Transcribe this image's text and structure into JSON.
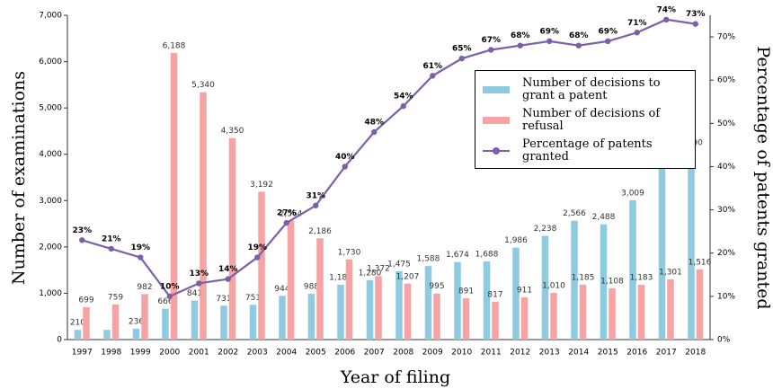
{
  "chart_data": {
    "type": "bar-line",
    "xlabel": "Year of filing",
    "ylabel": "Number of examinations",
    "y2label": "Percentage of patents granted",
    "categories": [
      "1997",
      "1998",
      "1999",
      "2000",
      "2001",
      "2002",
      "2003",
      "2004",
      "2005",
      "2006",
      "2007",
      "2008",
      "2009",
      "2010",
      "2011",
      "2012",
      "2013",
      "2014",
      "2015",
      "2016",
      "2017",
      "2018"
    ],
    "series": [
      {
        "name": "Number of decisions to grant a patent",
        "type": "bar",
        "color": "#8fcbe0",
        "values": [
          210,
          210,
          236,
          666,
          841,
          731,
          751,
          944,
          988,
          1184,
          1280,
          1475,
          1588,
          1674,
          1688,
          1986,
          2238,
          2566,
          2488,
          3009,
          3744,
          4090
        ],
        "value_labels": [
          "210",
          null,
          "236",
          "666",
          "841",
          "731",
          "751",
          "944",
          "988",
          "1,184",
          "1,280",
          "1,475",
          "1,588",
          "1,674",
          "1,688",
          "1,986",
          "2,238",
          "2,566",
          "2,488",
          "3,009",
          "3,744",
          "4,090"
        ]
      },
      {
        "name": "Number of decisions of refusal",
        "type": "bar",
        "color": "#f7a3a3",
        "values": [
          699,
          759,
          982,
          6188,
          5340,
          4350,
          3192,
          2564,
          2186,
          1730,
          1372,
          1207,
          995,
          891,
          817,
          911,
          1010,
          1185,
          1108,
          1183,
          1301,
          1516
        ],
        "value_labels": [
          "699",
          "759",
          "982",
          "6,188",
          "5,340",
          "4,350",
          "3,192",
          "2,564",
          "2,186",
          "1,730",
          "1,372",
          "1,207",
          "995",
          "891",
          "817",
          "911",
          "1,010",
          "1,185",
          "1,108",
          "1,183",
          "1,301",
          "1,516"
        ]
      },
      {
        "name": "Percentage of patents granted",
        "type": "line",
        "axis": "y2",
        "color": "#7d5fa8",
        "values": [
          23,
          21,
          19,
          10,
          13,
          14,
          19,
          27,
          31,
          40,
          48,
          54,
          61,
          65,
          67,
          68,
          69,
          68,
          69,
          71,
          74,
          73
        ],
        "value_labels": [
          "23%",
          "21%",
          "19%",
          "10%",
          "13%",
          "14%",
          "19%",
          "27%",
          "31%",
          "40%",
          "48%",
          "54%",
          "61%",
          "65%",
          "67%",
          "68%",
          "69%",
          "68%",
          "69%",
          "71%",
          "74%",
          "73%"
        ]
      }
    ],
    "ylim": [
      0,
      7000
    ],
    "yticks": [
      0,
      {
        "value": 1000,
        "label": "1,000"
      },
      {
        "value": 2000,
        "label": "2,000"
      },
      {
        "value": 3000,
        "label": "3,000"
      },
      {
        "value": 4000,
        "label": "4,000"
      },
      {
        "value": 5000,
        "label": "5,000"
      },
      {
        "value": 6000,
        "label": "6,000"
      },
      {
        "value": 7000,
        "label": "7,000"
      }
    ],
    "y2lim": [
      0,
      75
    ],
    "y2ticks": [
      {
        "value": 0,
        "label": "0%"
      },
      {
        "value": 10,
        "label": "10%"
      },
      {
        "value": 20,
        "label": "20%"
      },
      {
        "value": 30,
        "label": "30%"
      },
      {
        "value": 40,
        "label": "40%"
      },
      {
        "value": 50,
        "label": "50%"
      },
      {
        "value": 60,
        "label": "60%"
      },
      {
        "value": 70,
        "label": "70%"
      }
    ],
    "legend": "upper right"
  }
}
